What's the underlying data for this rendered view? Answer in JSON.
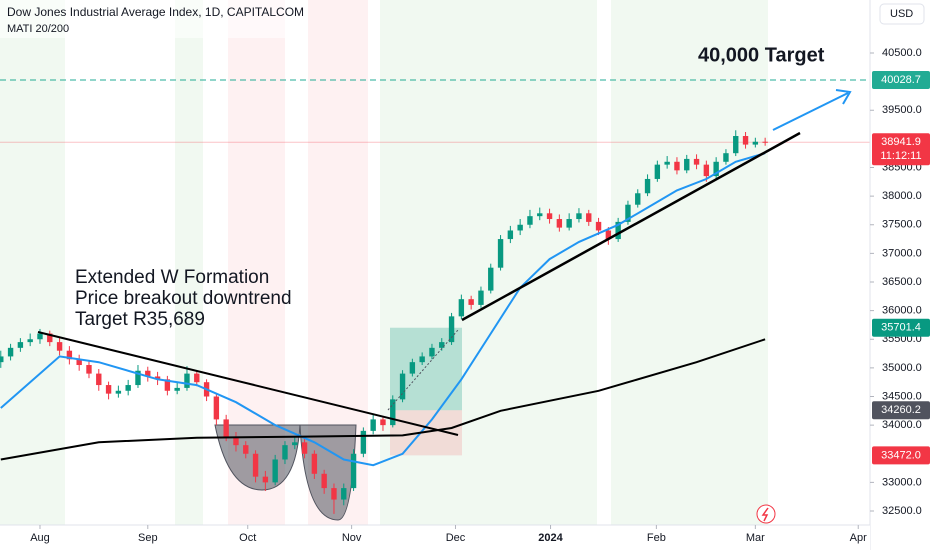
{
  "chart_data": {
    "type": "candlestick",
    "title": "Dow Jones Industrial Average Index, 1D, CAPITALCOM",
    "subtitle": "MATI 20/200",
    "currency": "USD",
    "annotations": [
      "40,000 Target",
      "Extended W Formation",
      "Price breakout downtrend",
      "Target R35,689"
    ],
    "xlim": [
      -0.08,
      88.7
    ],
    "xticks": [
      {
        "value": 4,
        "label": "Aug"
      },
      {
        "value": 15,
        "label": "Sep"
      },
      {
        "value": 25.2,
        "label": "Oct"
      },
      {
        "value": 35.8,
        "label": "Nov"
      },
      {
        "value": 46.4,
        "label": "Dec"
      },
      {
        "value": 56.1,
        "label": "2024"
      },
      {
        "value": 66.9,
        "label": "Feb"
      },
      {
        "value": 77,
        "label": "Mar"
      },
      {
        "value": 87.5,
        "label": "Apr"
      }
    ],
    "ylim": [
      32255.5,
      41425.8
    ],
    "yticks": [
      {
        "value": 32500,
        "label": "32500.0"
      },
      {
        "value": 33000,
        "label": "33000.0"
      },
      {
        "value": 34000,
        "label": "34000.0"
      },
      {
        "value": 34500,
        "label": "34500.0"
      },
      {
        "value": 35000,
        "label": "35000.0"
      },
      {
        "value": 35500,
        "label": "35500.0"
      },
      {
        "value": 36000,
        "label": "36000.0"
      },
      {
        "value": 36500,
        "label": "36500.0"
      },
      {
        "value": 37000,
        "label": "37000.0"
      },
      {
        "value": 37500,
        "label": "37500.0"
      },
      {
        "value": 38000,
        "label": "38000.0"
      },
      {
        "value": 38500,
        "label": "38500.0"
      },
      {
        "value": 39500,
        "label": "39500.0"
      },
      {
        "value": 40500,
        "label": "40500.0"
      }
    ],
    "grid": false,
    "series": [
      {
        "type": "candlestick",
        "up_color": "#089981",
        "down_color": "#f23645",
        "ohlc": [
          [
            35100,
            35300,
            35000,
            35200
          ],
          [
            35200,
            35420,
            35130,
            35350
          ],
          [
            35350,
            35520,
            35280,
            35450
          ],
          [
            35450,
            35600,
            35380,
            35500
          ],
          [
            35500,
            35680,
            35420,
            35600
          ],
          [
            35600,
            35650,
            35380,
            35450
          ],
          [
            35450,
            35520,
            35220,
            35300
          ],
          [
            35300,
            35380,
            35060,
            35150
          ],
          [
            35150,
            35230,
            34950,
            35050
          ],
          [
            35050,
            35120,
            34820,
            34900
          ],
          [
            34900,
            34980,
            34600,
            34700
          ],
          [
            34700,
            34760,
            34450,
            34550
          ],
          [
            34550,
            34690,
            34480,
            34600
          ],
          [
            34600,
            34790,
            34520,
            34700
          ],
          [
            34700,
            35050,
            34650,
            34950
          ],
          [
            34950,
            35020,
            34760,
            34850
          ],
          [
            34850,
            34930,
            34700,
            34800
          ],
          [
            34800,
            34860,
            34520,
            34600
          ],
          [
            34600,
            34740,
            34540,
            34650
          ],
          [
            34650,
            35030,
            34600,
            34900
          ],
          [
            34900,
            34960,
            34680,
            34750
          ],
          [
            34750,
            34800,
            34420,
            34500
          ],
          [
            34500,
            34560,
            34000,
            34100
          ],
          [
            34100,
            34180,
            33720,
            33800
          ],
          [
            33800,
            33880,
            33540,
            33650
          ],
          [
            33650,
            33720,
            33420,
            33500
          ],
          [
            33500,
            33560,
            33000,
            33100
          ],
          [
            33100,
            33200,
            32850,
            33000
          ],
          [
            33000,
            33480,
            32950,
            33400
          ],
          [
            33400,
            33720,
            33320,
            33650
          ],
          [
            33650,
            33790,
            33580,
            33700
          ],
          [
            33700,
            33760,
            33420,
            33500
          ],
          [
            33500,
            33560,
            33060,
            33150
          ],
          [
            33150,
            33220,
            32800,
            32900
          ],
          [
            32900,
            32980,
            32450,
            32700
          ],
          [
            32700,
            32980,
            32600,
            32900
          ],
          [
            32900,
            33580,
            32850,
            33500
          ],
          [
            33500,
            33960,
            33440,
            33900
          ],
          [
            33900,
            34180,
            33840,
            34100
          ],
          [
            34100,
            34160,
            33900,
            34000
          ],
          [
            34000,
            34520,
            33960,
            34450
          ],
          [
            34450,
            34960,
            34400,
            34900
          ],
          [
            34900,
            35160,
            34850,
            35100
          ],
          [
            35100,
            35270,
            35050,
            35200
          ],
          [
            35200,
            35420,
            35150,
            35350
          ],
          [
            35350,
            35520,
            35300,
            35450
          ],
          [
            35450,
            35960,
            35400,
            35900
          ],
          [
            35900,
            36280,
            35850,
            36200
          ],
          [
            36200,
            36260,
            36020,
            36100
          ],
          [
            36100,
            36420,
            36050,
            36350
          ],
          [
            36350,
            36820,
            36300,
            36750
          ],
          [
            36750,
            37320,
            36700,
            37250
          ],
          [
            37250,
            37480,
            37180,
            37400
          ],
          [
            37400,
            37600,
            37320,
            37500
          ],
          [
            37500,
            37760,
            37440,
            37650
          ],
          [
            37650,
            37800,
            37580,
            37700
          ],
          [
            37700,
            37780,
            37520,
            37600
          ],
          [
            37600,
            37680,
            37380,
            37450
          ],
          [
            37450,
            37700,
            37400,
            37600
          ],
          [
            37600,
            37790,
            37540,
            37700
          ],
          [
            37700,
            37760,
            37480,
            37550
          ],
          [
            37550,
            37620,
            37320,
            37400
          ],
          [
            37400,
            37460,
            37150,
            37250
          ],
          [
            37250,
            37620,
            37200,
            37550
          ],
          [
            37550,
            37920,
            37500,
            37850
          ],
          [
            37850,
            38120,
            37800,
            38050
          ],
          [
            38050,
            38380,
            38000,
            38300
          ],
          [
            38300,
            38620,
            38250,
            38550
          ],
          [
            38550,
            38700,
            38480,
            38600
          ],
          [
            38600,
            38680,
            38380,
            38450
          ],
          [
            38450,
            38720,
            38400,
            38650
          ],
          [
            38650,
            38730,
            38470,
            38550
          ],
          [
            38550,
            38620,
            38250,
            38350
          ],
          [
            38350,
            38680,
            38300,
            38600
          ],
          [
            38600,
            38820,
            38550,
            38750
          ],
          [
            38750,
            39150,
            38700,
            39050
          ],
          [
            39050,
            39120,
            38830,
            38900
          ],
          [
            38900,
            39020,
            38850,
            38950
          ],
          [
            38950,
            39020,
            38880,
            38941.9
          ]
        ]
      },
      {
        "type": "line",
        "color": "#2196f3",
        "x": [
          0,
          6,
          10,
          16,
          20,
          24,
          28,
          32,
          35,
          38,
          41,
          44,
          47,
          50,
          53,
          56,
          59,
          63,
          66,
          69,
          72,
          75,
          78
        ],
        "values": [
          34300,
          35200,
          35100,
          34800,
          34700,
          34400,
          34000,
          33700,
          33400,
          33300,
          33500,
          34100,
          34800,
          35600,
          36400,
          36900,
          37200,
          37500,
          37800,
          38100,
          38300,
          38600,
          38750
        ]
      },
      {
        "type": "line",
        "color": "#000000",
        "x": [
          0,
          10,
          20,
          31,
          41,
          46,
          51,
          61,
          71,
          78
        ],
        "values": [
          33400,
          33700,
          33780,
          33800,
          33820,
          33950,
          34250,
          34600,
          35100,
          35500
        ]
      }
    ],
    "price_labels": [
      {
        "value": 40028.7,
        "color": "#22ab94"
      },
      {
        "value": 38941.9,
        "color": "#f23645",
        "countdown": "11:12:11"
      },
      {
        "value": 35701.4,
        "color": "#089981"
      },
      {
        "value": 34260.2,
        "color": "#50535e"
      },
      {
        "value": 33472,
        "label": "33472.0",
        "color": "#f23645"
      }
    ]
  }
}
